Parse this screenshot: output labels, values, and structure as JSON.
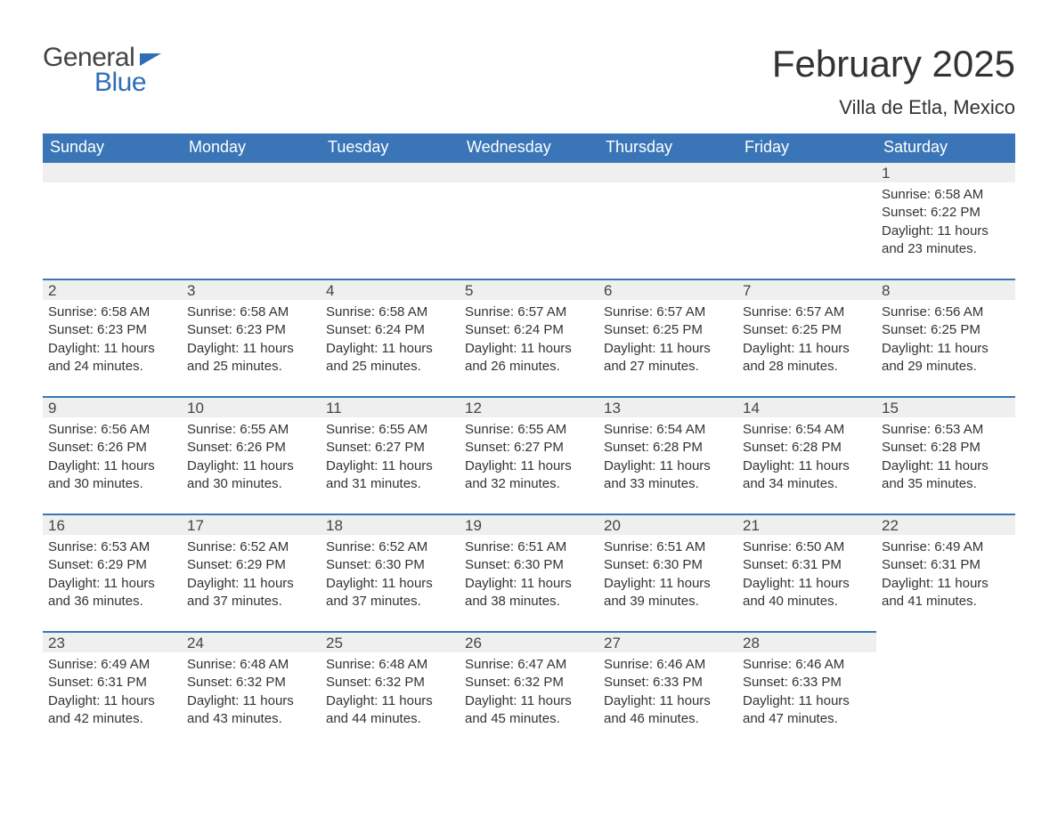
{
  "brand": {
    "word1": "General",
    "word2": "Blue"
  },
  "title": {
    "month": "February 2025",
    "location": "Villa de Etla, Mexico"
  },
  "style": {
    "accent_color": "#3a76b7",
    "header_bg": "#3a76b7",
    "header_text_color": "#ffffff",
    "daynum_bg": "#efefef",
    "row_border_color": "#3a76b7",
    "body_text_color": "#333333",
    "page_bg": "#ffffff",
    "title_fontsize": 42,
    "location_fontsize": 22,
    "header_fontsize": 18,
    "cell_fontsize": 15
  },
  "weekdays": [
    "Sunday",
    "Monday",
    "Tuesday",
    "Wednesday",
    "Thursday",
    "Friday",
    "Saturday"
  ],
  "weeks": [
    [
      {
        "n": "",
        "sr": "",
        "ss": "",
        "dl1": "",
        "dl2": ""
      },
      {
        "n": "",
        "sr": "",
        "ss": "",
        "dl1": "",
        "dl2": ""
      },
      {
        "n": "",
        "sr": "",
        "ss": "",
        "dl1": "",
        "dl2": ""
      },
      {
        "n": "",
        "sr": "",
        "ss": "",
        "dl1": "",
        "dl2": ""
      },
      {
        "n": "",
        "sr": "",
        "ss": "",
        "dl1": "",
        "dl2": ""
      },
      {
        "n": "",
        "sr": "",
        "ss": "",
        "dl1": "",
        "dl2": ""
      },
      {
        "n": "1",
        "sr": "Sunrise: 6:58 AM",
        "ss": "Sunset: 6:22 PM",
        "dl1": "Daylight: 11 hours",
        "dl2": "and 23 minutes."
      }
    ],
    [
      {
        "n": "2",
        "sr": "Sunrise: 6:58 AM",
        "ss": "Sunset: 6:23 PM",
        "dl1": "Daylight: 11 hours",
        "dl2": "and 24 minutes."
      },
      {
        "n": "3",
        "sr": "Sunrise: 6:58 AM",
        "ss": "Sunset: 6:23 PM",
        "dl1": "Daylight: 11 hours",
        "dl2": "and 25 minutes."
      },
      {
        "n": "4",
        "sr": "Sunrise: 6:58 AM",
        "ss": "Sunset: 6:24 PM",
        "dl1": "Daylight: 11 hours",
        "dl2": "and 25 minutes."
      },
      {
        "n": "5",
        "sr": "Sunrise: 6:57 AM",
        "ss": "Sunset: 6:24 PM",
        "dl1": "Daylight: 11 hours",
        "dl2": "and 26 minutes."
      },
      {
        "n": "6",
        "sr": "Sunrise: 6:57 AM",
        "ss": "Sunset: 6:25 PM",
        "dl1": "Daylight: 11 hours",
        "dl2": "and 27 minutes."
      },
      {
        "n": "7",
        "sr": "Sunrise: 6:57 AM",
        "ss": "Sunset: 6:25 PM",
        "dl1": "Daylight: 11 hours",
        "dl2": "and 28 minutes."
      },
      {
        "n": "8",
        "sr": "Sunrise: 6:56 AM",
        "ss": "Sunset: 6:25 PM",
        "dl1": "Daylight: 11 hours",
        "dl2": "and 29 minutes."
      }
    ],
    [
      {
        "n": "9",
        "sr": "Sunrise: 6:56 AM",
        "ss": "Sunset: 6:26 PM",
        "dl1": "Daylight: 11 hours",
        "dl2": "and 30 minutes."
      },
      {
        "n": "10",
        "sr": "Sunrise: 6:55 AM",
        "ss": "Sunset: 6:26 PM",
        "dl1": "Daylight: 11 hours",
        "dl2": "and 30 minutes."
      },
      {
        "n": "11",
        "sr": "Sunrise: 6:55 AM",
        "ss": "Sunset: 6:27 PM",
        "dl1": "Daylight: 11 hours",
        "dl2": "and 31 minutes."
      },
      {
        "n": "12",
        "sr": "Sunrise: 6:55 AM",
        "ss": "Sunset: 6:27 PM",
        "dl1": "Daylight: 11 hours",
        "dl2": "and 32 minutes."
      },
      {
        "n": "13",
        "sr": "Sunrise: 6:54 AM",
        "ss": "Sunset: 6:28 PM",
        "dl1": "Daylight: 11 hours",
        "dl2": "and 33 minutes."
      },
      {
        "n": "14",
        "sr": "Sunrise: 6:54 AM",
        "ss": "Sunset: 6:28 PM",
        "dl1": "Daylight: 11 hours",
        "dl2": "and 34 minutes."
      },
      {
        "n": "15",
        "sr": "Sunrise: 6:53 AM",
        "ss": "Sunset: 6:28 PM",
        "dl1": "Daylight: 11 hours",
        "dl2": "and 35 minutes."
      }
    ],
    [
      {
        "n": "16",
        "sr": "Sunrise: 6:53 AM",
        "ss": "Sunset: 6:29 PM",
        "dl1": "Daylight: 11 hours",
        "dl2": "and 36 minutes."
      },
      {
        "n": "17",
        "sr": "Sunrise: 6:52 AM",
        "ss": "Sunset: 6:29 PM",
        "dl1": "Daylight: 11 hours",
        "dl2": "and 37 minutes."
      },
      {
        "n": "18",
        "sr": "Sunrise: 6:52 AM",
        "ss": "Sunset: 6:30 PM",
        "dl1": "Daylight: 11 hours",
        "dl2": "and 37 minutes."
      },
      {
        "n": "19",
        "sr": "Sunrise: 6:51 AM",
        "ss": "Sunset: 6:30 PM",
        "dl1": "Daylight: 11 hours",
        "dl2": "and 38 minutes."
      },
      {
        "n": "20",
        "sr": "Sunrise: 6:51 AM",
        "ss": "Sunset: 6:30 PM",
        "dl1": "Daylight: 11 hours",
        "dl2": "and 39 minutes."
      },
      {
        "n": "21",
        "sr": "Sunrise: 6:50 AM",
        "ss": "Sunset: 6:31 PM",
        "dl1": "Daylight: 11 hours",
        "dl2": "and 40 minutes."
      },
      {
        "n": "22",
        "sr": "Sunrise: 6:49 AM",
        "ss": "Sunset: 6:31 PM",
        "dl1": "Daylight: 11 hours",
        "dl2": "and 41 minutes."
      }
    ],
    [
      {
        "n": "23",
        "sr": "Sunrise: 6:49 AM",
        "ss": "Sunset: 6:31 PM",
        "dl1": "Daylight: 11 hours",
        "dl2": "and 42 minutes."
      },
      {
        "n": "24",
        "sr": "Sunrise: 6:48 AM",
        "ss": "Sunset: 6:32 PM",
        "dl1": "Daylight: 11 hours",
        "dl2": "and 43 minutes."
      },
      {
        "n": "25",
        "sr": "Sunrise: 6:48 AM",
        "ss": "Sunset: 6:32 PM",
        "dl1": "Daylight: 11 hours",
        "dl2": "and 44 minutes."
      },
      {
        "n": "26",
        "sr": "Sunrise: 6:47 AM",
        "ss": "Sunset: 6:32 PM",
        "dl1": "Daylight: 11 hours",
        "dl2": "and 45 minutes."
      },
      {
        "n": "27",
        "sr": "Sunrise: 6:46 AM",
        "ss": "Sunset: 6:33 PM",
        "dl1": "Daylight: 11 hours",
        "dl2": "and 46 minutes."
      },
      {
        "n": "28",
        "sr": "Sunrise: 6:46 AM",
        "ss": "Sunset: 6:33 PM",
        "dl1": "Daylight: 11 hours",
        "dl2": "and 47 minutes."
      },
      {
        "n": "",
        "sr": "",
        "ss": "",
        "dl1": "",
        "dl2": ""
      }
    ]
  ]
}
